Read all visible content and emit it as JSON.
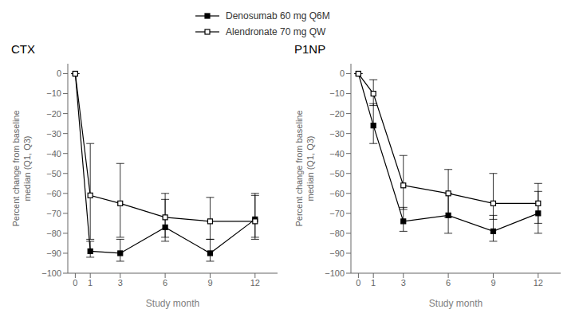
{
  "chart_data": [
    {
      "type": "line",
      "title": "CTX",
      "x": [
        0,
        1,
        3,
        6,
        9,
        12
      ],
      "xlim": [
        -0.5,
        13.5
      ],
      "xticks": [
        0,
        1,
        3,
        6,
        9,
        12
      ],
      "ylim": [
        -100,
        5
      ],
      "yticks": [
        0,
        {
          "value": -10,
          "label": "−10"
        },
        {
          "value": -20,
          "label": "−20"
        },
        {
          "value": -30,
          "label": "−30"
        },
        {
          "value": -40,
          "label": "−40"
        },
        {
          "value": -50,
          "label": "−50"
        },
        {
          "value": -60,
          "label": "−60"
        },
        {
          "value": -70,
          "label": "−70"
        },
        {
          "value": -80,
          "label": "−80"
        },
        {
          "value": -90,
          "label": "−90"
        },
        {
          "value": -100,
          "label": "−100"
        }
      ],
      "xlabel": "Study month",
      "ylabel": "Percent change from baseline\nmedian (Q1, Q3)",
      "grid": false,
      "legend": "top",
      "series": [
        {
          "name": "Denosumab 60 mg Q6M",
          "color": "#000000",
          "marker": "square",
          "values": [
            0,
            -89,
            -90,
            -77,
            -90,
            -73
          ],
          "q1": [
            0,
            -92,
            -94,
            -84,
            -94,
            -82
          ],
          "q3": [
            0,
            -84,
            -83,
            -63,
            -83,
            -61
          ]
        },
        {
          "name": "Alendronate 70 mg QW",
          "color": "#000000",
          "marker": "open_square",
          "values": [
            0,
            -61,
            -65,
            -72,
            -74,
            -74
          ],
          "q1": [
            0,
            -83,
            -82,
            -82,
            -83,
            -83
          ],
          "q3": [
            0,
            -35,
            -45,
            -60,
            -62,
            -60
          ]
        }
      ]
    },
    {
      "type": "line",
      "title": "P1NP",
      "x": [
        0,
        1,
        3,
        6,
        9,
        12
      ],
      "xlim": [
        -0.5,
        13.5
      ],
      "xticks": [
        0,
        1,
        3,
        6,
        9,
        12
      ],
      "ylim": [
        -100,
        5
      ],
      "yticks": [
        0,
        {
          "value": -10,
          "label": "−10"
        },
        {
          "value": -20,
          "label": "−20"
        },
        {
          "value": -30,
          "label": "−30"
        },
        {
          "value": -40,
          "label": "−40"
        },
        {
          "value": -50,
          "label": "−50"
        },
        {
          "value": -60,
          "label": "−60"
        },
        {
          "value": -70,
          "label": "−70"
        },
        {
          "value": -80,
          "label": "−80"
        },
        {
          "value": -90,
          "label": "−90"
        },
        {
          "value": -100,
          "label": "−100"
        }
      ],
      "xlabel": "Study month",
      "ylabel": "Percent change from baseline\nmedian (Q1, Q3)",
      "grid": false,
      "series": [
        {
          "name": "Denosumab 60 mg Q6M",
          "color": "#000000",
          "marker": "square",
          "values": [
            0,
            -26,
            -74,
            -71,
            -79,
            -70
          ],
          "q1": [
            0,
            -35,
            -79,
            -80,
            -84,
            -80
          ],
          "q3": [
            0,
            -15,
            -67,
            -60,
            -71,
            -59
          ]
        },
        {
          "name": "Alendronate 70 mg QW",
          "color": "#000000",
          "marker": "open_square",
          "values": [
            0,
            -10,
            -56,
            -60,
            -65,
            -65
          ],
          "q1": [
            0,
            -16,
            -68,
            -72,
            -73,
            -75
          ],
          "q3": [
            0,
            -3,
            -41,
            -48,
            -50,
            -55
          ]
        }
      ]
    }
  ]
}
